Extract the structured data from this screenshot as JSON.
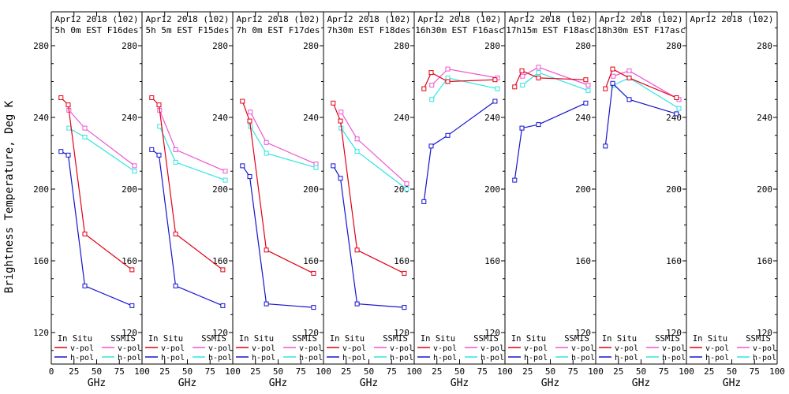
{
  "figure": {
    "ylabel": "Brightness Temperature, Deg K",
    "xlabel": "GHz",
    "xticks": [
      0,
      25,
      50,
      75,
      100
    ],
    "yticks": [
      120,
      160,
      200,
      240,
      280
    ],
    "xlim": [
      0,
      100
    ],
    "ylim_displayed": [
      102,
      299
    ],
    "grid": "off",
    "legend": {
      "position": "bottom-inside-each-panel",
      "group1": "In Situ",
      "group2": "SSMIS",
      "row1": "v-pol",
      "row2": "h-pol"
    },
    "colors": {
      "insitu_v": "#e00014",
      "insitu_h": "#1414cc",
      "ssmis_v": "#ee55d4",
      "ssmis_h": "#30e4e4",
      "axis": "#000000",
      "text": "#000000",
      "background": "#ffffff"
    }
  },
  "chart_data": [
    {
      "type": "line",
      "title_line1": "Apr12 2018 (102)",
      "title_line2": "5h 0m EST F16des",
      "series": [
        {
          "name": "SSMIS v-pol",
          "color": "ssmis_v",
          "x": [
            19.35,
            37,
            91.7
          ],
          "y": [
            244,
            234,
            213
          ]
        },
        {
          "name": "SSMIS h-pol",
          "color": "ssmis_h",
          "x": [
            19.35,
            37,
            91.7
          ],
          "y": [
            234,
            229,
            210
          ]
        },
        {
          "name": "In Situ v-pol",
          "color": "insitu_v",
          "x": [
            10.7,
            18.7,
            37,
            89
          ],
          "y": [
            251,
            247,
            175,
            155
          ]
        },
        {
          "name": "In Situ h-pol",
          "color": "insitu_h",
          "x": [
            10.7,
            18.7,
            37,
            89
          ],
          "y": [
            221,
            219,
            146,
            135
          ]
        }
      ]
    },
    {
      "type": "line",
      "title_line1": "Apr12 2018 (102)",
      "title_line2": "5h 5m EST F15des",
      "series": [
        {
          "name": "SSMIS v-pol",
          "color": "ssmis_v",
          "x": [
            19.35,
            37,
            91.7
          ],
          "y": [
            244,
            222,
            210
          ]
        },
        {
          "name": "SSMIS h-pol",
          "color": "ssmis_h",
          "x": [
            19.35,
            37,
            91.7
          ],
          "y": [
            235,
            215,
            205
          ]
        },
        {
          "name": "In Situ v-pol",
          "color": "insitu_v",
          "x": [
            10.7,
            18.7,
            37,
            89
          ],
          "y": [
            251,
            247,
            175,
            155
          ]
        },
        {
          "name": "In Situ h-pol",
          "color": "insitu_h",
          "x": [
            10.7,
            18.7,
            37,
            89
          ],
          "y": [
            222,
            219,
            146,
            135
          ]
        }
      ]
    },
    {
      "type": "line",
      "title_line1": "Apr12 2018 (102)",
      "title_line2": "7h 0m EST F17des",
      "series": [
        {
          "name": "SSMIS v-pol",
          "color": "ssmis_v",
          "x": [
            19.35,
            37,
            91.7
          ],
          "y": [
            243,
            226,
            214
          ]
        },
        {
          "name": "SSMIS h-pol",
          "color": "ssmis_h",
          "x": [
            19.35,
            37,
            91.7
          ],
          "y": [
            235,
            220,
            212
          ]
        },
        {
          "name": "In Situ v-pol",
          "color": "insitu_v",
          "x": [
            10.7,
            18.7,
            37,
            89
          ],
          "y": [
            249,
            238,
            166,
            153
          ]
        },
        {
          "name": "In Situ h-pol",
          "color": "insitu_h",
          "x": [
            10.7,
            18.7,
            37,
            89
          ],
          "y": [
            213,
            207,
            136,
            134
          ]
        }
      ]
    },
    {
      "type": "line",
      "title_line1": "Apr12 2018 (102)",
      "title_line2": "7h30m EST F18des",
      "series": [
        {
          "name": "SSMIS v-pol",
          "color": "ssmis_v",
          "x": [
            19.35,
            37,
            91.7
          ],
          "y": [
            243,
            228,
            203
          ]
        },
        {
          "name": "SSMIS h-pol",
          "color": "ssmis_h",
          "x": [
            19.35,
            37,
            91.7
          ],
          "y": [
            234,
            221,
            200
          ]
        },
        {
          "name": "In Situ v-pol",
          "color": "insitu_v",
          "x": [
            10.7,
            18.7,
            37,
            89
          ],
          "y": [
            248,
            238,
            166,
            153
          ]
        },
        {
          "name": "In Situ h-pol",
          "color": "insitu_h",
          "x": [
            10.7,
            18.7,
            37,
            89
          ],
          "y": [
            213,
            206,
            136,
            134
          ]
        }
      ]
    },
    {
      "type": "line",
      "title_line1": "Apr12 2018 (102)",
      "title_line2": "16h30m EST F16asc",
      "series": [
        {
          "name": "SSMIS v-pol",
          "color": "ssmis_v",
          "x": [
            19.35,
            37,
            91.7
          ],
          "y": [
            258,
            267,
            262
          ]
        },
        {
          "name": "SSMIS h-pol",
          "color": "ssmis_h",
          "x": [
            19.35,
            37,
            91.7
          ],
          "y": [
            250,
            262,
            256
          ]
        },
        {
          "name": "In Situ v-pol",
          "color": "insitu_v",
          "x": [
            10.7,
            18.7,
            37,
            89
          ],
          "y": [
            256,
            265,
            260,
            261
          ]
        },
        {
          "name": "In Situ h-pol",
          "color": "insitu_h",
          "x": [
            10.7,
            18.7,
            37,
            89
          ],
          "y": [
            193,
            224,
            230,
            249
          ]
        }
      ]
    },
    {
      "type": "line",
      "title_line1": "Apr12 2018 (102)",
      "title_line2": "17h15m EST F18asc",
      "series": [
        {
          "name": "SSMIS v-pol",
          "color": "ssmis_v",
          "x": [
            19.35,
            37,
            91.7
          ],
          "y": [
            263,
            268,
            258
          ]
        },
        {
          "name": "SSMIS h-pol",
          "color": "ssmis_h",
          "x": [
            19.35,
            37,
            91.7
          ],
          "y": [
            258,
            265,
            255
          ]
        },
        {
          "name": "In Situ v-pol",
          "color": "insitu_v",
          "x": [
            10.7,
            18.7,
            37,
            89
          ],
          "y": [
            257,
            266,
            262,
            261
          ]
        },
        {
          "name": "In Situ h-pol",
          "color": "insitu_h",
          "x": [
            10.7,
            18.7,
            37,
            89
          ],
          "y": [
            205,
            234,
            236,
            248
          ]
        }
      ]
    },
    {
      "type": "line",
      "title_line1": "Apr12 2018 (102)",
      "title_line2": "18h30m EST F17asc",
      "series": [
        {
          "name": "SSMIS v-pol",
          "color": "ssmis_v",
          "x": [
            19.35,
            37,
            91.7
          ],
          "y": [
            263,
            266,
            250
          ]
        },
        {
          "name": "SSMIS h-pol",
          "color": "ssmis_h",
          "x": [
            19.35,
            37,
            91.7
          ],
          "y": [
            258,
            262,
            245
          ]
        },
        {
          "name": "In Situ v-pol",
          "color": "insitu_v",
          "x": [
            10.7,
            18.7,
            37,
            89
          ],
          "y": [
            256,
            267,
            262,
            251
          ]
        },
        {
          "name": "In Situ h-pol",
          "color": "insitu_h",
          "x": [
            10.7,
            18.7,
            37,
            89
          ],
          "y": [
            224,
            259,
            250,
            242
          ]
        }
      ]
    },
    {
      "type": "line",
      "title_line1": "Apr12 2018 (102)",
      "title_line2": "",
      "series": []
    }
  ]
}
